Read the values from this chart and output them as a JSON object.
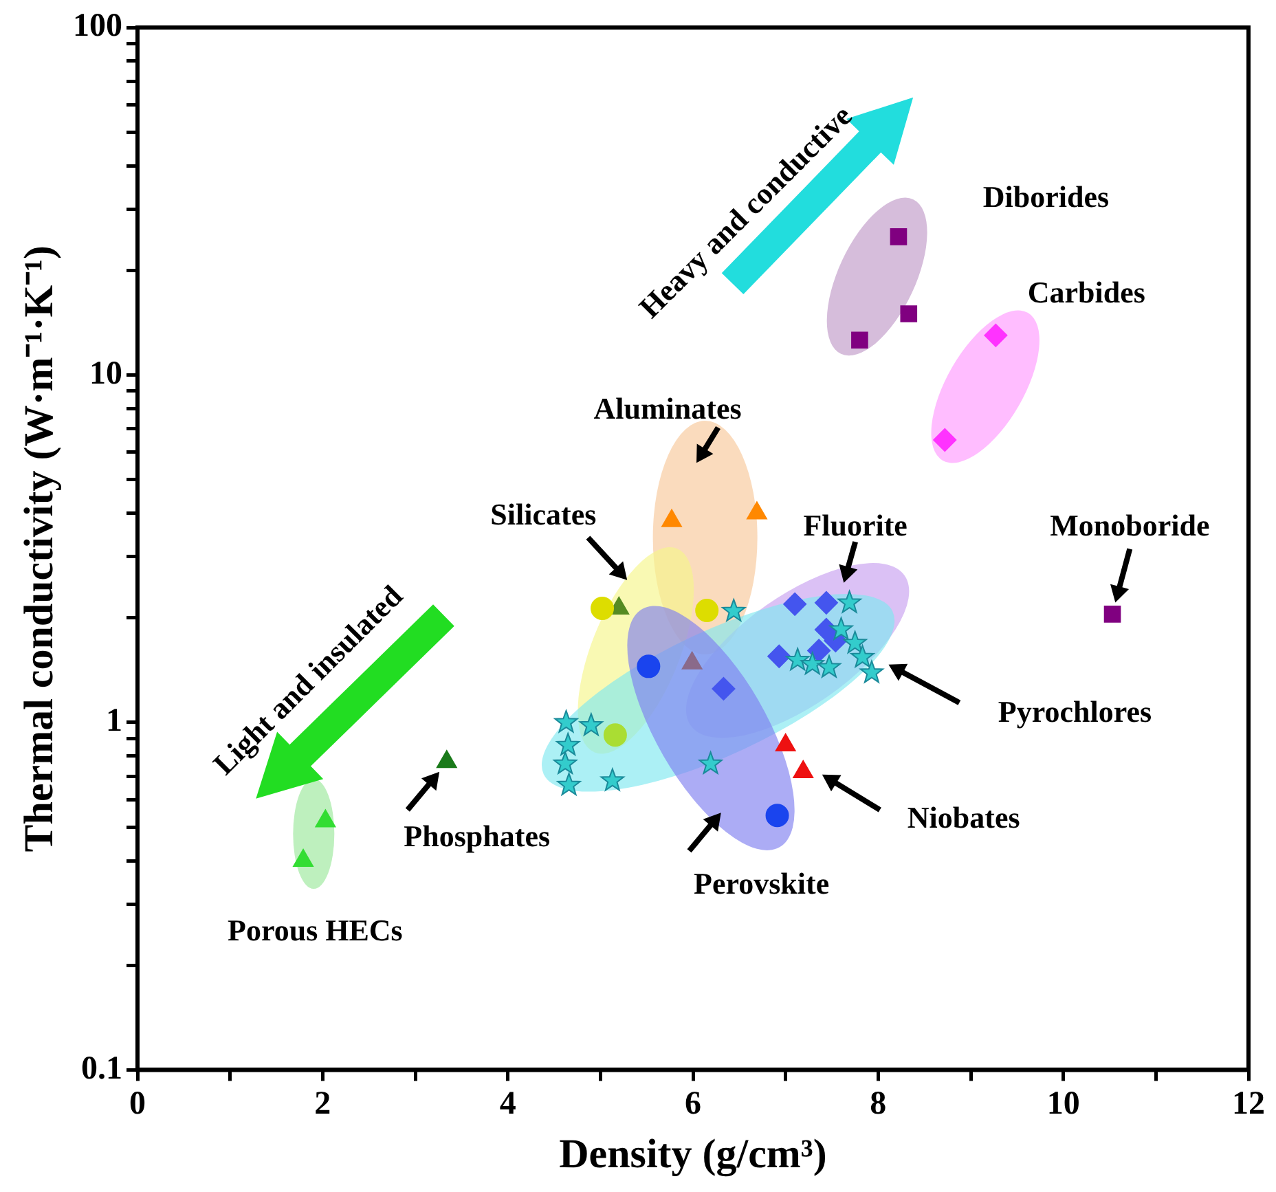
{
  "chart_data": {
    "type": "scatter",
    "xlabel": "Density (g/cm³)",
    "ylabel": "Thermal conductivity (W·m⁻¹·K⁻¹)",
    "log": "y",
    "xlim": [
      0,
      12
    ],
    "ylim": [
      0.1,
      100
    ],
    "xticks": [
      0,
      {
        "value": 1,
        "label": null
      },
      2,
      {
        "value": 3,
        "label": null
      },
      4,
      {
        "value": 5,
        "label": null
      },
      6,
      {
        "value": 7,
        "label": null
      },
      8,
      {
        "value": 9,
        "label": null
      },
      10,
      {
        "value": 11,
        "label": null
      },
      12
    ],
    "yticks": [
      0.1,
      {
        "value": 0.2,
        "label": null
      },
      {
        "value": 0.3,
        "label": null
      },
      {
        "value": 0.4,
        "label": null
      },
      {
        "value": 0.5,
        "label": null
      },
      {
        "value": 0.6,
        "label": null
      },
      {
        "value": 0.7,
        "label": null
      },
      {
        "value": 0.8,
        "label": null
      },
      {
        "value": 0.9,
        "label": null
      },
      1,
      {
        "value": 2,
        "label": null
      },
      {
        "value": 3,
        "label": null
      },
      {
        "value": 4,
        "label": null
      },
      {
        "value": 5,
        "label": null
      },
      {
        "value": 6,
        "label": null
      },
      {
        "value": 7,
        "label": null
      },
      {
        "value": 8,
        "label": null
      },
      {
        "value": 9,
        "label": null
      },
      10,
      {
        "value": 20,
        "label": null
      },
      {
        "value": 30,
        "label": null
      },
      {
        "value": 40,
        "label": null
      },
      {
        "value": 50,
        "label": null
      },
      {
        "value": 60,
        "label": null
      },
      {
        "value": 70,
        "label": null
      },
      {
        "value": 80,
        "label": null
      },
      {
        "value": 90,
        "label": null
      },
      100
    ],
    "legend": false,
    "series": [
      {
        "color": "#33dd33",
        "marker": "triangle",
        "x": [
          2.03,
          1.79
        ],
        "values": [
          0.52,
          0.4
        ]
      },
      {
        "color": "#1a7a1a",
        "marker": "triangle",
        "x": [
          3.34
        ],
        "values": [
          0.77
        ]
      },
      {
        "color": "#800080",
        "marker": "square",
        "x": [
          8.22,
          8.33,
          7.8
        ],
        "values": [
          25,
          15,
          12.6
        ]
      },
      {
        "color": "#ff33ff",
        "marker": "diamond",
        "x": [
          9.27,
          8.72
        ],
        "values": [
          13,
          6.5
        ]
      },
      {
        "color": "#800080",
        "marker": "square",
        "x": [
          10.53
        ],
        "values": [
          2.05
        ]
      },
      {
        "color": "#ff8800",
        "marker": "triangle",
        "x": [
          5.77,
          6.69
        ],
        "values": [
          3.8,
          4
        ]
      },
      {
        "color": "#dddd00",
        "marker": "circle",
        "x": [
          5.02,
          6.15
        ],
        "values": [
          2.13,
          2.1
        ]
      },
      {
        "color": "#aadd33",
        "marker": "circle",
        "x": [
          5.16
        ],
        "values": [
          0.92
        ]
      },
      {
        "color": "#558b22",
        "marker": "triangle",
        "x": [
          5.2
        ],
        "values": [
          2.13
        ]
      },
      {
        "color": "#1a44ee",
        "marker": "circle",
        "x": [
          5.52,
          6.91
        ],
        "values": [
          1.45,
          0.54
        ]
      },
      {
        "color": "#8a6a8a",
        "marker": "triangle",
        "x": [
          5.99
        ],
        "values": [
          1.48
        ]
      },
      {
        "color": "#4455ee",
        "marker": "diamond",
        "x": [
          7.1,
          7.44,
          7.44,
          7.54,
          7.36,
          6.93,
          6.33
        ],
        "values": [
          2.19,
          2.21,
          1.85,
          1.72,
          1.61,
          1.55,
          1.25
        ]
      },
      {
        "color": "#33cccc",
        "marker": "star",
        "x": [
          6.44,
          7.69,
          7.6,
          7.75,
          7.13,
          7.29,
          7.47,
          7.83,
          7.93,
          4.63,
          4.9,
          4.65,
          4.62,
          4.66,
          5.13,
          6.19
        ],
        "values": [
          2.09,
          2.21,
          1.85,
          1.69,
          1.51,
          1.47,
          1.44,
          1.54,
          1.39,
          1,
          0.98,
          0.86,
          0.76,
          0.66,
          0.68,
          0.76
        ]
      },
      {
        "color": "#ee1111",
        "marker": "triangle",
        "x": [
          7,
          7.19
        ],
        "values": [
          0.86,
          0.72
        ]
      }
    ],
    "annotations": [
      "Heavy and conductive",
      "Light and insulated",
      "Diborides",
      "Carbides",
      "Aluminates",
      "Silicates",
      "Fluorite",
      "Monoboride",
      "Pyrochlores",
      "Niobates",
      "Perovskite",
      "Phosphates",
      "Porous HECs"
    ]
  }
}
